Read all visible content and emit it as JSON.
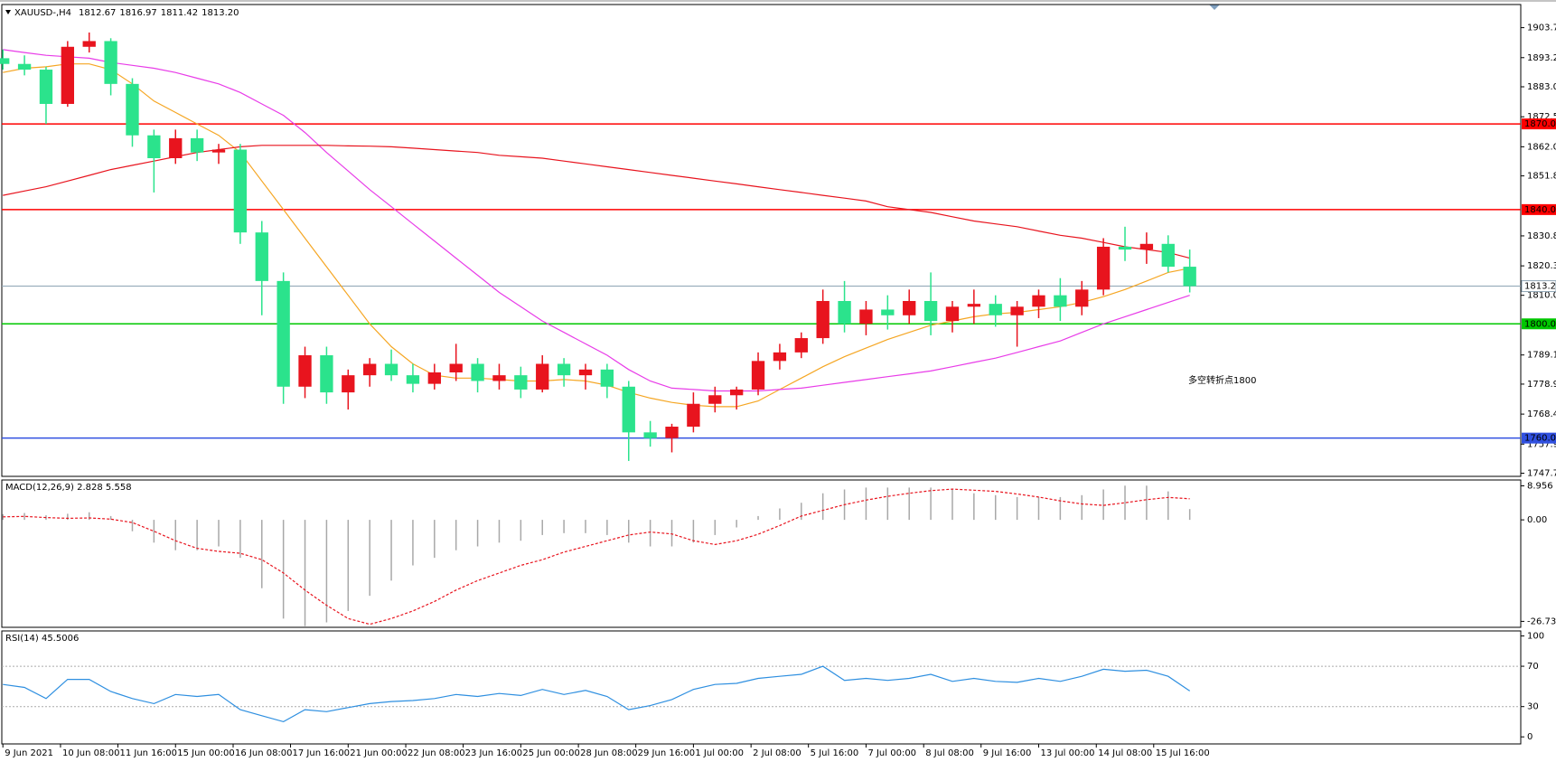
{
  "chart_data": [
    {
      "type": "candlestick",
      "title": "XAUUSD-,H4",
      "ohlc_labels": [
        "1812.67",
        "1816.97",
        "1811.42",
        "1813.20"
      ],
      "up_color": "#e8141e",
      "down_color": "#2be38c",
      "open": [
        1893,
        1891,
        1889,
        1877,
        1897,
        1899,
        1884,
        1866,
        1858,
        1865,
        1860,
        1861,
        1832,
        1815,
        1778,
        1789,
        1776,
        1782,
        1786,
        1782,
        1779,
        1783,
        1786,
        1780,
        1782,
        1777,
        1786,
        1782,
        1784,
        1778,
        1762,
        1760,
        1764,
        1772,
        1775,
        1777,
        1787,
        1790,
        1795,
        1808,
        1800,
        1805,
        1803,
        1808,
        1801,
        1806,
        1807,
        1803,
        1806,
        1810,
        1806,
        1812,
        1827,
        1826,
        1828,
        1820
      ],
      "high": [
        1896,
        1894,
        1890,
        1899,
        1902,
        1900,
        1886,
        1868,
        1868,
        1868,
        1863,
        1863,
        1836,
        1818,
        1792,
        1792,
        1784,
        1788,
        1791,
        1786,
        1786,
        1793,
        1788,
        1786,
        1785,
        1789,
        1788,
        1786,
        1786,
        1780,
        1766,
        1765,
        1776,
        1778,
        1778,
        1790,
        1793,
        1797,
        1812,
        1815,
        1808,
        1810,
        1812,
        1818,
        1808,
        1812,
        1810,
        1808,
        1812,
        1816,
        1815,
        1830,
        1834,
        1832,
        1831,
        1826
      ],
      "low": [
        1889,
        1887,
        1870,
        1876,
        1895,
        1880,
        1862,
        1846,
        1856,
        1857,
        1856,
        1828,
        1803,
        1772,
        1774,
        1772,
        1770,
        1778,
        1780,
        1776,
        1777,
        1780,
        1776,
        1777,
        1774,
        1776,
        1778,
        1777,
        1774,
        1752,
        1757,
        1755,
        1762,
        1769,
        1770,
        1775,
        1784,
        1788,
        1793,
        1797,
        1796,
        1798,
        1800,
        1796,
        1797,
        1800,
        1799,
        1792,
        1802,
        1801,
        1803,
        1810,
        1822,
        1821,
        1818,
        1811
      ],
      "close": [
        1891,
        1889,
        1877,
        1897,
        1899,
        1884,
        1866,
        1858,
        1865,
        1860,
        1861,
        1832,
        1815,
        1778,
        1789,
        1776,
        1782,
        1786,
        1782,
        1779,
        1783,
        1786,
        1780,
        1782,
        1777,
        1786,
        1782,
        1784,
        1778,
        1762,
        1760,
        1764,
        1772,
        1775,
        1777,
        1787,
        1790,
        1795,
        1808,
        1800,
        1805,
        1803,
        1808,
        1801,
        1806,
        1807,
        1803,
        1806,
        1810,
        1806,
        1812,
        1827,
        1826,
        1828,
        1820,
        1813.2
      ],
      "overlays": [
        {
          "color": "#f5a623",
          "values": [
            1888,
            1889.5,
            1890,
            1891,
            1891,
            1889,
            1884,
            1878,
            1874,
            1870,
            1866,
            1860,
            1850,
            1840,
            1830,
            1820,
            1810,
            1800,
            1792,
            1786,
            1782,
            1781,
            1781,
            1780.5,
            1780,
            1780,
            1780.5,
            1780,
            1778.5,
            1776,
            1774,
            1772.5,
            1771.5,
            1771,
            1771,
            1773,
            1777,
            1781,
            1785,
            1788.5,
            1791.5,
            1794.5,
            1797,
            1799.5,
            1801,
            1802.5,
            1803.5,
            1804,
            1805,
            1806,
            1807.5,
            1809.5,
            1812,
            1815,
            1818,
            1819.5
          ]
        },
        {
          "color": "#e83ce8",
          "values": [
            1896,
            1895,
            1894,
            1893.5,
            1893,
            1891.5,
            1890.5,
            1889.5,
            1888,
            1886,
            1884,
            1881,
            1877,
            1873,
            1867,
            1860,
            1853.5,
            1847,
            1841,
            1835,
            1829,
            1823,
            1817,
            1811,
            1806,
            1801,
            1797,
            1793,
            1789,
            1784,
            1780,
            1777.5,
            1777,
            1776.5,
            1776.5,
            1776.5,
            1777,
            1777.5,
            1778.5,
            1779.5,
            1780.5,
            1781.5,
            1782.5,
            1783.5,
            1785,
            1786.5,
            1788,
            1790,
            1792,
            1794,
            1797,
            1800,
            1802.5,
            1805,
            1807.5,
            1810
          ]
        },
        {
          "color": "#e8141e",
          "values": [
            1845,
            1846.5,
            1848,
            1850,
            1852,
            1854,
            1855.5,
            1857,
            1858.5,
            1860,
            1861,
            1862,
            1862.5,
            1862.5,
            1862.5,
            1862.5,
            1862.3,
            1862.2,
            1862,
            1861.5,
            1861,
            1860.5,
            1860,
            1859,
            1858.5,
            1858,
            1857,
            1856,
            1855,
            1854,
            1853,
            1852,
            1851,
            1850,
            1849,
            1848,
            1847,
            1846,
            1845,
            1844,
            1843,
            1841,
            1840,
            1839,
            1837.5,
            1836,
            1835,
            1834,
            1832.5,
            1831,
            1830,
            1828.5,
            1827,
            1826,
            1825,
            1823
          ]
        }
      ],
      "levels": [
        {
          "value": 1870,
          "label": "1870.00",
          "color": "#ff0000"
        },
        {
          "value": 1840,
          "label": "1840.00",
          "color": "#ff0000"
        },
        {
          "value": 1800,
          "label": "1800.00",
          "color": "#00c800"
        },
        {
          "value": 1760,
          "label": "1760.00",
          "color": "#3050e0"
        }
      ],
      "last_price": {
        "value": 1813.2,
        "label": "1813.20"
      },
      "annotation": "多空转折点1800",
      "annotation_color": "#ff2020",
      "xlim": [
        -0.05,
        70.34
      ],
      "ylim": [
        1746.6,
        1911.8
      ],
      "yticks": [
        {
          "value": 1903.7,
          "label": "1903.70"
        },
        {
          "value": 1893.2,
          "label": "1893.20"
        },
        {
          "value": 1883,
          "label": "1883.00"
        },
        {
          "value": 1872.5,
          "label": "1872.50"
        },
        {
          "value": 1862,
          "label": "1862.00"
        },
        {
          "value": 1851.8,
          "label": "1851.80"
        },
        {
          "value": 1830.8,
          "label": "1830.80"
        },
        {
          "value": 1820.3,
          "label": "1820.30"
        },
        {
          "value": 1810,
          "label": "1810.00"
        },
        {
          "value": 1789.1,
          "label": "1789.10"
        },
        {
          "value": 1778.9,
          "label": "1778.90"
        },
        {
          "value": 1768.4,
          "label": "1768.40"
        },
        {
          "value": 1757.9,
          "label": "1757.90"
        },
        {
          "value": 1747.7,
          "label": "1747.70"
        }
      ],
      "xticks": [
        {
          "value": 0,
          "label": "9 Jun 2021"
        },
        {
          "value": 2.67,
          "label": "10 Jun 08:00"
        },
        {
          "value": 5.33,
          "label": "11 Jun 16:00"
        },
        {
          "value": 8,
          "label": "15 Jun 00:00"
        },
        {
          "value": 10.67,
          "label": "16 Jun 08:00"
        },
        {
          "value": 13.33,
          "label": "17 Jun 16:00"
        },
        {
          "value": 16,
          "label": "21 Jun 00:00"
        },
        {
          "value": 18.67,
          "label": "22 Jun 08:00"
        },
        {
          "value": 21.33,
          "label": "23 Jun 16:00"
        },
        {
          "value": 24,
          "label": "25 Jun 00:00"
        },
        {
          "value": 26.67,
          "label": "28 Jun 08:00"
        },
        {
          "value": 29.33,
          "label": "29 Jun 16:00"
        },
        {
          "value": 32,
          "label": "1 Jul 00:00"
        },
        {
          "value": 34.67,
          "label": "2 Jul 08:00"
        },
        {
          "value": 37.33,
          "label": "5 Jul 16:00"
        },
        {
          "value": 40,
          "label": "7 Jul 00:00"
        },
        {
          "value": 42.67,
          "label": "8 Jul 08:00"
        },
        {
          "value": 45.33,
          "label": "9 Jul 16:00"
        },
        {
          "value": 48,
          "label": "13 Jul 00:00"
        },
        {
          "value": 50.67,
          "label": "14 Jul 08:00"
        },
        {
          "value": 53.33,
          "label": "15 Jul 16:00"
        }
      ]
    },
    {
      "type": "macd",
      "title": "MACD(12,26,9) 2.828 5.558",
      "histogram": {
        "color": "#a8a8a8",
        "values": [
          1.5,
          1.8,
          1.2,
          1.6,
          2,
          1,
          -3,
          -6,
          -8,
          -8,
          -7,
          -10,
          -18,
          -26,
          -28,
          -27,
          -24,
          -20,
          -16,
          -12,
          -10,
          -8,
          -7,
          -6,
          -5.5,
          -4,
          -3.5,
          -3.5,
          -4,
          -6,
          -7,
          -7,
          -6,
          -4,
          -2,
          1,
          3,
          4.5,
          7,
          8,
          8.5,
          8.5,
          8.5,
          8.5,
          8,
          7,
          6.5,
          6,
          6,
          6,
          6.5,
          8,
          9,
          9,
          7.5,
          2.828
        ]
      },
      "signal": {
        "color": "#e8141e",
        "values": [
          0.8,
          0.9,
          0.6,
          0.4,
          0.5,
          0.2,
          -0.7,
          -3,
          -5.5,
          -7.5,
          -8.3,
          -8.8,
          -10.5,
          -14,
          -18.5,
          -22.5,
          -26,
          -27.5,
          -26,
          -24,
          -21.5,
          -18.5,
          -16,
          -14,
          -12,
          -10.5,
          -8.5,
          -7,
          -5.5,
          -4,
          -3.2,
          -3.7,
          -5.5,
          -6.5,
          -5.5,
          -3.8,
          -1.5,
          1,
          2.5,
          4,
          5.2,
          6.2,
          7,
          7.7,
          8.1,
          7.8,
          7.5,
          6.8,
          6,
          5,
          4.2,
          3.8,
          4.5,
          5.3,
          5.9,
          5.558
        ]
      },
      "ylim": [
        -28.3,
        10.5
      ],
      "yticks": [
        8.956,
        {
          "value": 0,
          "label": "0.00"
        },
        -26.731
      ]
    },
    {
      "type": "line",
      "title": "RSI(14) 45.5006",
      "color": "#2e8fe0",
      "values": [
        52,
        49,
        38,
        57,
        57,
        45,
        38,
        33,
        42,
        40,
        42,
        27,
        21,
        15,
        27,
        25,
        29,
        33,
        35,
        36,
        38,
        42,
        40,
        43,
        41,
        47,
        42,
        46,
        40,
        27,
        31,
        37,
        47,
        52,
        53,
        58,
        60,
        62,
        70,
        56,
        58,
        56,
        58,
        62,
        55,
        58,
        55,
        54,
        58,
        55,
        60,
        67,
        65,
        66,
        60,
        45.5006
      ],
      "levels": [
        70,
        30
      ],
      "ylim": [
        -7,
        105
      ],
      "yticks": [
        100,
        70,
        30,
        0
      ]
    }
  ]
}
